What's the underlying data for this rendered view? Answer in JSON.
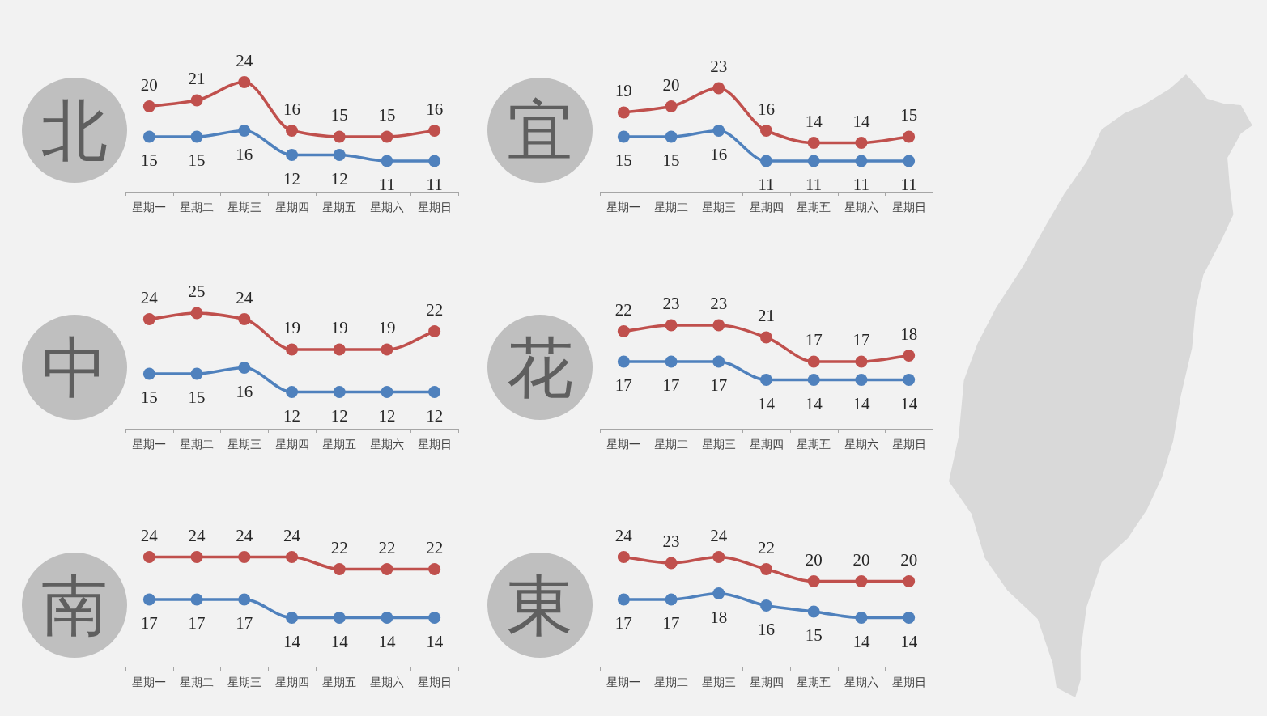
{
  "chart_data": [
    {
      "type": "line",
      "title": "北",
      "categories": [
        "星期一",
        "星期二",
        "星期三",
        "星期四",
        "星期五",
        "星期六",
        "星期日"
      ],
      "series": [
        {
          "color": "#c0504d",
          "values": [
            20,
            21,
            24,
            16,
            15,
            15,
            16
          ]
        },
        {
          "color": "#4f81bd",
          "values": [
            15,
            15,
            16,
            12,
            12,
            11,
            11
          ]
        }
      ],
      "data_labels": true,
      "marker": "circle",
      "line_style": "solid",
      "tick_labels": "x"
    },
    {
      "type": "line",
      "title": "宜",
      "categories": [
        "星期一",
        "星期二",
        "星期三",
        "星期四",
        "星期五",
        "星期六",
        "星期日"
      ],
      "series": [
        {
          "color": "#c0504d",
          "values": [
            19,
            20,
            23,
            16,
            14,
            14,
            15
          ]
        },
        {
          "color": "#4f81bd",
          "values": [
            15,
            15,
            16,
            11,
            11,
            11,
            11
          ]
        }
      ],
      "data_labels": true,
      "marker": "circle",
      "line_style": "solid",
      "tick_labels": "x"
    },
    {
      "type": "line",
      "title": "中",
      "categories": [
        "星期一",
        "星期二",
        "星期三",
        "星期四",
        "星期五",
        "星期六",
        "星期日"
      ],
      "series": [
        {
          "color": "#c0504d",
          "values": [
            24,
            25,
            24,
            19,
            19,
            19,
            22
          ]
        },
        {
          "color": "#4f81bd",
          "values": [
            15,
            15,
            16,
            12,
            12,
            12,
            12
          ]
        }
      ],
      "data_labels": true,
      "marker": "circle",
      "line_style": "solid",
      "tick_labels": "x"
    },
    {
      "type": "line",
      "title": "花",
      "categories": [
        "星期一",
        "星期二",
        "星期三",
        "星期四",
        "星期五",
        "星期六",
        "星期日"
      ],
      "series": [
        {
          "color": "#c0504d",
          "values": [
            22,
            23,
            23,
            21,
            17,
            17,
            18
          ]
        },
        {
          "color": "#4f81bd",
          "values": [
            17,
            17,
            17,
            14,
            14,
            14,
            14
          ]
        }
      ],
      "data_labels": true,
      "marker": "circle",
      "line_style": "solid",
      "tick_labels": "x"
    },
    {
      "type": "line",
      "title": "南",
      "categories": [
        "星期一",
        "星期二",
        "星期三",
        "星期四",
        "星期五",
        "星期六",
        "星期日"
      ],
      "series": [
        {
          "color": "#c0504d",
          "values": [
            24,
            24,
            24,
            24,
            22,
            22,
            22
          ]
        },
        {
          "color": "#4f81bd",
          "values": [
            17,
            17,
            17,
            14,
            14,
            14,
            14
          ]
        }
      ],
      "data_labels": true,
      "marker": "circle",
      "line_style": "solid",
      "tick_labels": "x"
    },
    {
      "type": "line",
      "title": "東",
      "categories": [
        "星期一",
        "星期二",
        "星期三",
        "星期四",
        "星期五",
        "星期六",
        "星期日"
      ],
      "series": [
        {
          "color": "#c0504d",
          "values": [
            24,
            23,
            24,
            22,
            20,
            20,
            20
          ]
        },
        {
          "color": "#4f81bd",
          "values": [
            17,
            17,
            18,
            16,
            15,
            14,
            14
          ]
        }
      ],
      "data_labels": true,
      "marker": "circle",
      "line_style": "solid",
      "tick_labels": "x"
    }
  ]
}
